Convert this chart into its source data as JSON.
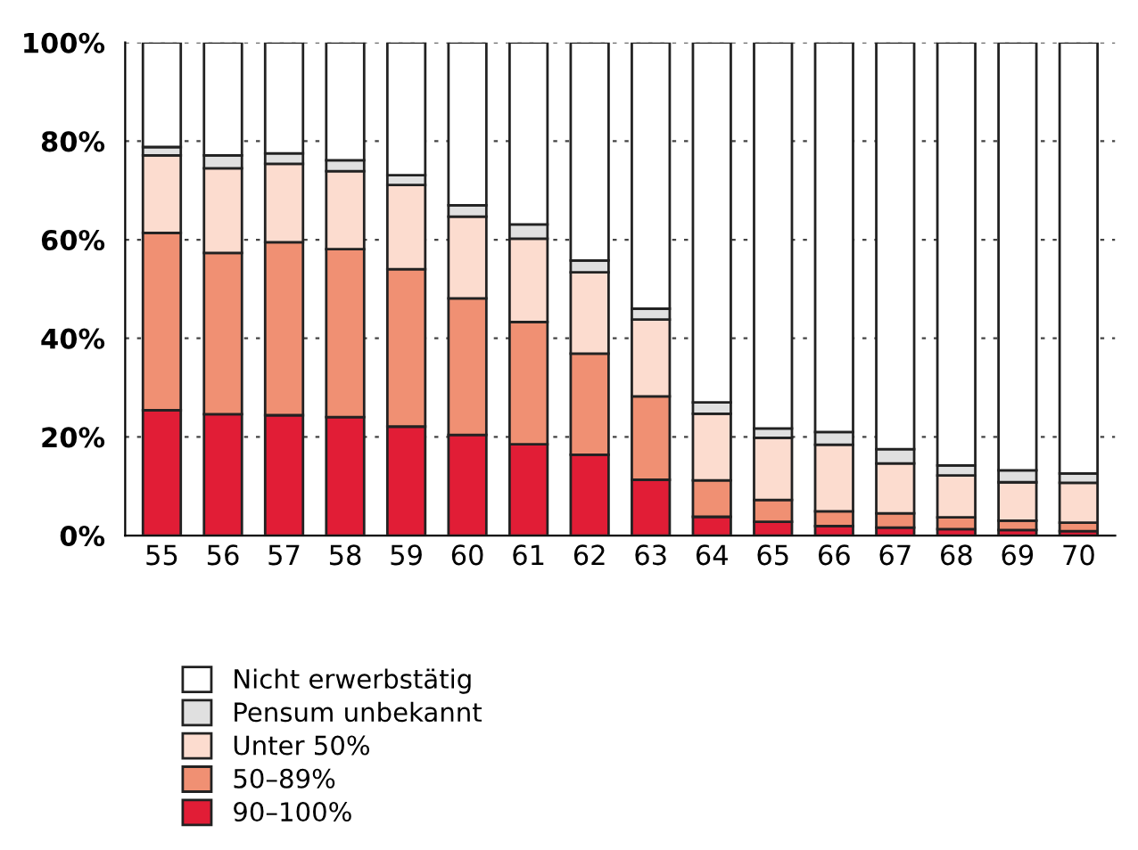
{
  "chart_data": {
    "type": "bar",
    "stacked": true,
    "categories": [
      "55",
      "56",
      "57",
      "58",
      "59",
      "60",
      "61",
      "62",
      "63",
      "64",
      "65",
      "66",
      "67",
      "68",
      "69",
      "70"
    ],
    "series": [
      {
        "name": "90–100%",
        "color": "#e11d36",
        "values": [
          25.4,
          24.6,
          24.4,
          24.0,
          22.1,
          20.4,
          18.5,
          16.4,
          11.3,
          3.8,
          2.8,
          1.9,
          1.6,
          1.3,
          1.1,
          0.9
        ]
      },
      {
        "name": "50–89%",
        "color": "#f09073",
        "values": [
          36.0,
          32.7,
          35.1,
          34.1,
          31.9,
          27.7,
          24.8,
          20.5,
          16.9,
          7.4,
          4.4,
          3.0,
          2.9,
          2.4,
          1.9,
          1.7
        ]
      },
      {
        "name": "Unter 50%",
        "color": "#fcdccf",
        "values": [
          15.7,
          17.2,
          15.9,
          15.8,
          17.1,
          16.6,
          16.9,
          16.5,
          15.6,
          13.5,
          12.6,
          13.5,
          10.1,
          8.5,
          7.8,
          8.1
        ]
      },
      {
        "name": "Pensum unbekannt",
        "color": "#e0e0e0",
        "values": [
          1.7,
          2.6,
          2.1,
          2.2,
          2.0,
          2.3,
          2.9,
          2.4,
          2.2,
          2.3,
          1.9,
          2.6,
          2.9,
          2.0,
          2.4,
          1.9
        ]
      },
      {
        "name": "Nicht erwerbstätig",
        "color": "#ffffff",
        "values": [
          21.2,
          22.9,
          22.5,
          23.9,
          26.9,
          33.0,
          36.9,
          44.2,
          54.0,
          73.0,
          78.3,
          79.0,
          82.5,
          85.8,
          86.8,
          87.4
        ]
      }
    ],
    "ylim": [
      0,
      100
    ],
    "yticks": [
      {
        "value": 0,
        "label": "0%"
      },
      {
        "value": 20,
        "label": "20%"
      },
      {
        "value": 40,
        "label": "40%"
      },
      {
        "value": 60,
        "label": "60%"
      },
      {
        "value": 80,
        "label": "80%"
      },
      {
        "value": 100,
        "label": "100%"
      }
    ],
    "grid": "y",
    "legend": "bottom left"
  }
}
